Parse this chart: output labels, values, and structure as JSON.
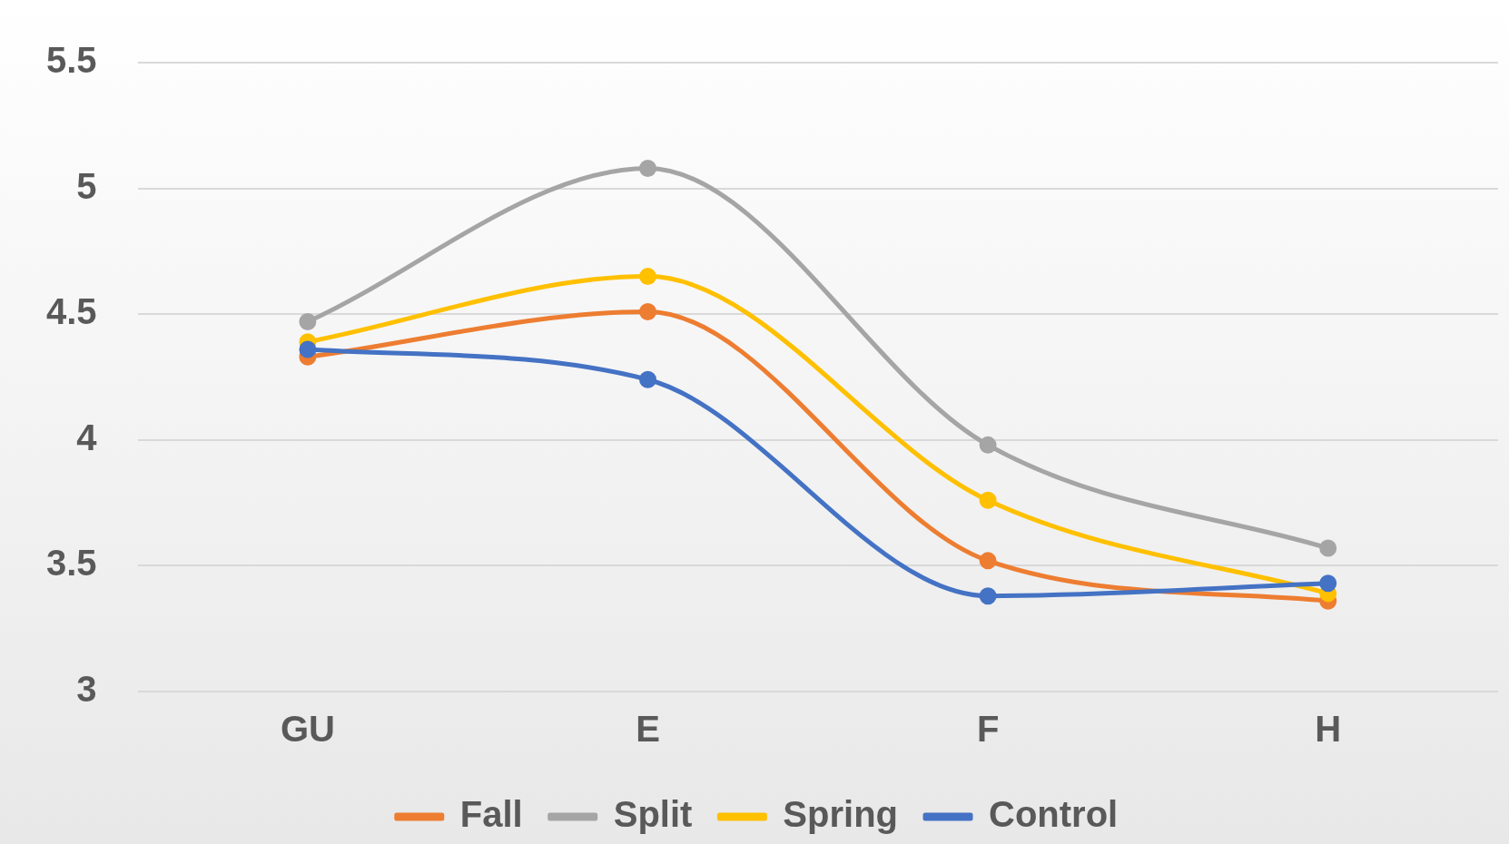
{
  "chart_data": {
    "type": "line",
    "categories": [
      "GU",
      "E",
      "F",
      "H"
    ],
    "series": [
      {
        "name": "Fall",
        "color": "#ed7d31",
        "values": [
          4.33,
          4.51,
          3.52,
          3.36
        ]
      },
      {
        "name": "Split",
        "color": "#a5a5a5",
        "values": [
          4.47,
          5.08,
          3.98,
          3.57
        ]
      },
      {
        "name": "Spring",
        "color": "#ffc000",
        "values": [
          4.39,
          4.65,
          3.76,
          3.39
        ]
      },
      {
        "name": "Control",
        "color": "#4472c4",
        "values": [
          4.36,
          4.24,
          3.38,
          3.43
        ]
      }
    ],
    "ylim": [
      3,
      5.5
    ],
    "yticks": [
      3,
      3.5,
      4,
      4.5,
      5,
      5.5
    ],
    "grid": "y",
    "legend": "bottom",
    "marker": "circle",
    "line_style": "solid"
  }
}
